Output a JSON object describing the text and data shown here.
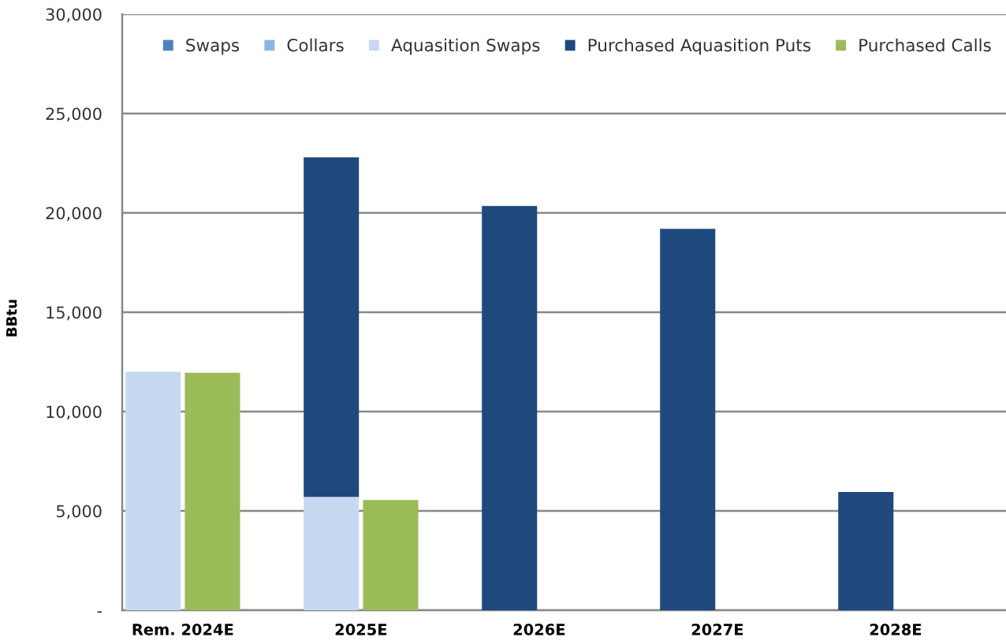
{
  "chart_data": [
    {
      "type": "bar",
      "stacked": true,
      "ylabel": "BBtu",
      "categories": [
        "Rem. 2024E",
        "2025E",
        "2026E",
        "2027E",
        "2028E"
      ],
      "series": [
        {
          "name": "Swaps",
          "color": "#4f81bd",
          "values": [
            null,
            null,
            null,
            null,
            null
          ]
        },
        {
          "name": "Collars",
          "color": "#8db3e2",
          "values": [
            null,
            null,
            null,
            null,
            null
          ]
        },
        {
          "name": "Aquasition Swaps",
          "color": "#c6d9f1",
          "values": [
            12000,
            5700,
            null,
            null,
            null
          ]
        },
        {
          "name": "Purchased Aquasition Puts",
          "color": "#1f497d",
          "values": [
            null,
            17100,
            20350,
            19200,
            5950
          ]
        }
      ],
      "ylim": [
        0,
        30000
      ],
      "yticks": [
        {
          "value": 0,
          "label": "-"
        },
        {
          "value": 5000,
          "label": "5,000"
        },
        {
          "value": 10000,
          "label": "10,000"
        },
        {
          "value": 15000,
          "label": "15,000"
        },
        {
          "value": 20000,
          "label": "20,000"
        },
        {
          "value": 25000,
          "label": "25,000"
        },
        {
          "value": 30000,
          "label": "30,000"
        }
      ],
      "grid": "y",
      "legend": "top"
    },
    {
      "type": "bar",
      "categories": [
        null,
        null,
        null,
        null,
        null
      ],
      "series": [
        {
          "name": "Purchased Calls",
          "color": "#9bbb59",
          "values": [
            11950,
            5550,
            null,
            null,
            null
          ]
        }
      ],
      "ylim": [
        0,
        30000
      ],
      "tick_labels": false,
      "legend": "top"
    }
  ]
}
